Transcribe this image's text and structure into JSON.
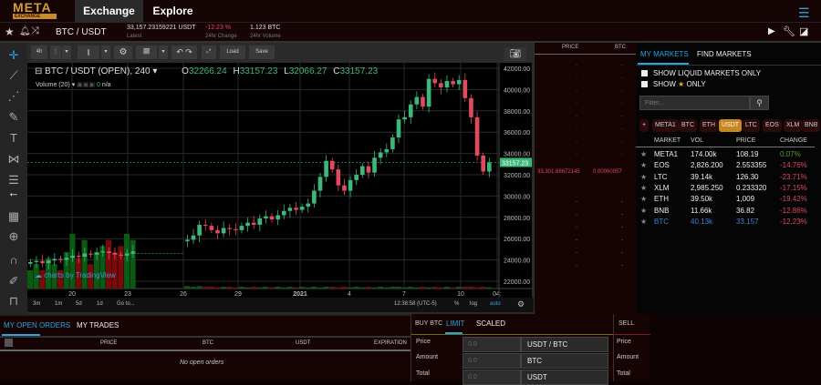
{
  "header": {
    "logo": "META",
    "logo_sub": "EXCHANGE",
    "tabs": [
      {
        "label": "Exchange",
        "active": true
      },
      {
        "label": "Explore",
        "active": false
      }
    ]
  },
  "ticker": {
    "pair": "BTC / USDT",
    "latest": "33,157.23159221 USDT",
    "latest_label": "Latest",
    "change": "-12.23 %",
    "change_label": "24hr Change",
    "volume": "1.123 BTC",
    "volume_label": "24hr Volume"
  },
  "chart_toolbar": {
    "interval": "4h",
    "load": "Load",
    "save": "Save"
  },
  "chart_legend": {
    "title": "BTC / USDT (OPEN), 240",
    "o": "32266.24",
    "h": "33157.23",
    "l": "32066.27",
    "c": "33157.23",
    "volume_label": "Volume (20)",
    "volume_value": "0",
    "volume_na": "n/a",
    "watermark": "charts by TradingView"
  },
  "chart_bottom": {
    "ranges": [
      "3m",
      "1m",
      "5d",
      "1d",
      "Go to..."
    ],
    "time": "12:38:58 (UTC-5)",
    "pct": "%",
    "log": "log",
    "auto": "auto"
  },
  "chart_data": {
    "type": "candlestick",
    "x_ticks": [
      "20",
      "23",
      "26",
      "29",
      "2021",
      "4",
      "7",
      "10",
      "04:"
    ],
    "y_ticks": [
      "42000.00",
      "40000.00",
      "38000.00",
      "36000.00",
      "34000.00",
      "32000.00",
      "30000.00",
      "28000.00",
      "26000.00",
      "24000.00",
      "22000.00"
    ],
    "ylim": [
      22000,
      42000
    ],
    "last_price": "33157.23",
    "closes": [
      23800,
      23900,
      23700,
      23950,
      24100,
      24000,
      24200,
      24400,
      24300,
      24600,
      24500,
      24700,
      24800,
      24650,
      24500,
      24400,
      24600,
      24800,
      null,
      null,
      null,
      null,
      null,
      null,
      null,
      null,
      25900,
      26300,
      27300,
      27200,
      26800,
      26500,
      27000,
      26900,
      26800,
      27200,
      27500,
      27300,
      27900,
      28100,
      27800,
      28200,
      28600,
      28900,
      28700,
      29000,
      29300,
      30500,
      31800,
      33300,
      32500,
      31000,
      30500,
      31500,
      32000,
      32800,
      32200,
      33600,
      34100,
      34400,
      35500,
      37200,
      37400,
      38600,
      39300,
      38400,
      41000,
      40600,
      40200,
      40800,
      40500,
      40900,
      39200,
      37400,
      33800,
      32300,
      33157
    ],
    "volumes": [
      3,
      4,
      3,
      5,
      4,
      3,
      6,
      9,
      5,
      8,
      4,
      6,
      7,
      8,
      6,
      7,
      9,
      8,
      0,
      0,
      0,
      0,
      0,
      0,
      0,
      0,
      0.4,
      0.3,
      0.4,
      0.3,
      0.3,
      0.2,
      0.3,
      0.3,
      0.2,
      0.3,
      0.2,
      0.3,
      0.2,
      0.3,
      0.2,
      0.3,
      0.2,
      0.3,
      0.2,
      0.3,
      0.2,
      0.3,
      0.2,
      0.3,
      0.3,
      0.2,
      0.3,
      0.2,
      0.3,
      0.2,
      0.3,
      0.2,
      0.3,
      0.2,
      0.3,
      0.3,
      0.2,
      0.3,
      0.2,
      0.3,
      0.2,
      0.3,
      0.2,
      0.3,
      0.2,
      0.3,
      0.3,
      0.3,
      0.2,
      0.3,
      0.2
    ],
    "up_color": "#3db87a",
    "down_color": "#e04a5f"
  },
  "orderbook": {
    "headers": [
      "PRICE",
      "BTC"
    ],
    "mid_price": "33,301.69672145",
    "mid_amount": "0.00060057"
  },
  "markets": {
    "tabs": [
      "MY MARKETS",
      "FIND MARKETS"
    ],
    "show_liquid": "SHOW LIQUID MARKETS ONLY",
    "show": "SHOW",
    "only": "ONLY",
    "filter_placeholder": "Filter...",
    "chips": [
      "+",
      "META1",
      "BTC",
      "ETH",
      "USDT",
      "LTC",
      "EOS",
      "XLM",
      "BNB"
    ],
    "active_chip": "USDT",
    "headers": [
      "MARKET",
      "VOL",
      "PRICE",
      "CHANGE"
    ],
    "rows": [
      {
        "market": "META1",
        "vol": "174.00k",
        "price": "108.19",
        "change": "0.07%"
      },
      {
        "market": "EOS",
        "vol": "2,826.200",
        "price": "2.553355",
        "change": "-14.76%"
      },
      {
        "market": "LTC",
        "vol": "39.14k",
        "price": "126.30",
        "change": "-23.71%"
      },
      {
        "market": "XLM",
        "vol": "2,985.250",
        "price": "0.233320",
        "change": "-17.15%"
      },
      {
        "market": "ETH",
        "vol": "39.50k",
        "price": "1,009",
        "change": "-19.42%"
      },
      {
        "market": "BNB",
        "vol": "11.66k",
        "price": "36.82",
        "change": "-12.86%"
      },
      {
        "market": "BTC",
        "vol": "40.13k",
        "price": "33,157",
        "change": "-12.23%"
      }
    ]
  },
  "orders": {
    "tabs": [
      "MY OPEN ORDERS",
      "MY TRADES"
    ],
    "headers": [
      "PRICE",
      "BTC",
      "USDT",
      "EXPIRATION"
    ],
    "empty": "No open orders"
  },
  "buy": {
    "title": "BUY BTC",
    "tabs": [
      "LIMIT",
      "SCALED"
    ],
    "fields": [
      {
        "label": "Price",
        "value": "0.0",
        "unit": "USDT / BTC"
      },
      {
        "label": "Amount",
        "value": "0.0",
        "unit": "BTC"
      },
      {
        "label": "Total",
        "value": "0.0",
        "unit": "USDT"
      }
    ]
  },
  "sell": {
    "title": "SELL",
    "fields": [
      "Price",
      "Amount",
      "Total"
    ]
  }
}
